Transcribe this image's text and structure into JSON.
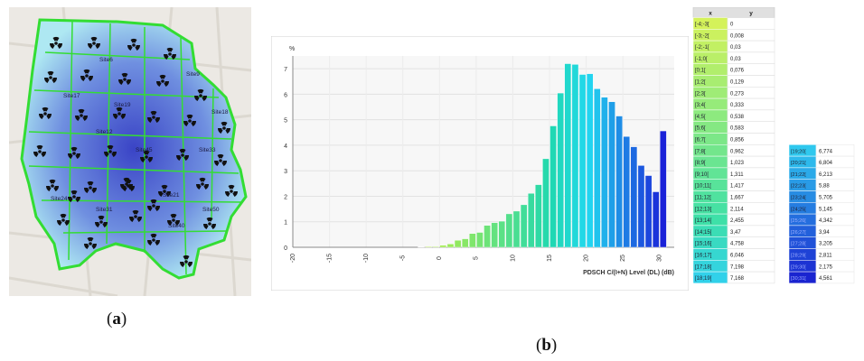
{
  "captions": {
    "a": "a",
    "b": "b"
  },
  "map": {
    "site_labels": [
      "Site6",
      "Site9",
      "Site12",
      "Site18",
      "Site33",
      "Site21",
      "Site17",
      "Site19",
      "Site24",
      "Site31",
      "Site40",
      "Site45",
      "Site50"
    ],
    "colors": {
      "boundary": "#33dd33",
      "coverage_light": "#aee8f2",
      "coverage_dark": "#3a44c6",
      "background": "#ece9e4"
    },
    "icon": "radiation-site-icon"
  },
  "chart_data": {
    "type": "bar",
    "ylabel": "%",
    "xlabel": "PDSCH C/(I+N) Level (DL) (dB)",
    "xlim": [
      -20,
      32
    ],
    "ylim": [
      0,
      7.5
    ],
    "xticks": [
      -20,
      -15,
      -10,
      -5,
      0,
      5,
      10,
      15,
      20,
      25,
      30
    ],
    "yticks": [
      0,
      1,
      2,
      3,
      4,
      5,
      6,
      7
    ],
    "grid": true,
    "bars": [
      {
        "x": [
          -4,
          -3
        ],
        "y": 0
      },
      {
        "x": [
          -3,
          -2
        ],
        "y": 0.008
      },
      {
        "x": [
          -2,
          -1
        ],
        "y": 0.03
      },
      {
        "x": [
          -1,
          0
        ],
        "y": 0.03
      },
      {
        "x": [
          0,
          1
        ],
        "y": 0.076
      },
      {
        "x": [
          1,
          2
        ],
        "y": 0.129
      },
      {
        "x": [
          2,
          3
        ],
        "y": 0.273
      },
      {
        "x": [
          3,
          4
        ],
        "y": 0.333
      },
      {
        "x": [
          4,
          5
        ],
        "y": 0.538
      },
      {
        "x": [
          5,
          6
        ],
        "y": 0.583
      },
      {
        "x": [
          6,
          7
        ],
        "y": 0.856
      },
      {
        "x": [
          7,
          8
        ],
        "y": 0.962
      },
      {
        "x": [
          8,
          9
        ],
        "y": 1.023
      },
      {
        "x": [
          9,
          10
        ],
        "y": 1.311
      },
      {
        "x": [
          10,
          11
        ],
        "y": 1.417
      },
      {
        "x": [
          11,
          12
        ],
        "y": 1.667
      },
      {
        "x": [
          12,
          13
        ],
        "y": 2.114
      },
      {
        "x": [
          13,
          14
        ],
        "y": 2.455
      },
      {
        "x": [
          14,
          15
        ],
        "y": 3.47
      },
      {
        "x": [
          15,
          16
        ],
        "y": 4.758
      },
      {
        "x": [
          16,
          17
        ],
        "y": 6.046
      },
      {
        "x": [
          17,
          18
        ],
        "y": 7.198
      },
      {
        "x": [
          18,
          19
        ],
        "y": 7.168
      },
      {
        "x": [
          19,
          20
        ],
        "y": 6.774
      },
      {
        "x": [
          20,
          21
        ],
        "y": 6.804
      },
      {
        "x": [
          21,
          22
        ],
        "y": 6.213
      },
      {
        "x": [
          22,
          23
        ],
        "y": 5.88
      },
      {
        "x": [
          23,
          24
        ],
        "y": 5.705
      },
      {
        "x": [
          24,
          25
        ],
        "y": 5.145
      },
      {
        "x": [
          25,
          26
        ],
        "y": 4.342
      },
      {
        "x": [
          26,
          27
        ],
        "y": 3.94
      },
      {
        "x": [
          27,
          28
        ],
        "y": 3.205
      },
      {
        "x": [
          28,
          29
        ],
        "y": 2.811
      },
      {
        "x": [
          29,
          30
        ],
        "y": 2.175
      },
      {
        "x": [
          30,
          31
        ],
        "y": 4.561
      }
    ],
    "colors": {
      "low": "#c6f03a",
      "mid": "#20d8b0",
      "high": "#22d8f0",
      "top": "#1a22d8"
    }
  },
  "table": {
    "headers": [
      "x",
      "y"
    ],
    "col1": [
      [
        "[-4;-3[",
        "0"
      ],
      [
        "[-3;-2[",
        "0,008"
      ],
      [
        "[-2;-1[",
        "0,03"
      ],
      [
        "[-1;0[",
        "0,03"
      ],
      [
        "[0;1[",
        "0,076"
      ],
      [
        "[1;2[",
        "0,129"
      ],
      [
        "[2;3[",
        "0,273"
      ],
      [
        "[3;4[",
        "0,333"
      ],
      [
        "[4;5[",
        "0,538"
      ],
      [
        "[5;6[",
        "0,583"
      ],
      [
        "[6;7[",
        "0,856"
      ],
      [
        "[7;8[",
        "0,962"
      ],
      [
        "[8;9[",
        "1,023"
      ],
      [
        "[9;10[",
        "1,311"
      ],
      [
        "[10;11[",
        "1,417"
      ],
      [
        "[11;12[",
        "1,667"
      ],
      [
        "[12;13[",
        "2,114"
      ],
      [
        "[13;14[",
        "2,455"
      ],
      [
        "[14;15[",
        "3,47"
      ],
      [
        "[15;16[",
        "4,758"
      ],
      [
        "[16;17[",
        "6,046"
      ],
      [
        "[17;18[",
        "7,198"
      ],
      [
        "[18;19[",
        "7,168"
      ]
    ],
    "col2": [
      [
        "[19;20[",
        "6,774"
      ],
      [
        "[20;21[",
        "6,804"
      ],
      [
        "[21;22[",
        "6,213"
      ],
      [
        "[22;23[",
        "5,88"
      ],
      [
        "[23;24[",
        "5,705"
      ],
      [
        "[24;25[",
        "5,145"
      ],
      [
        "[25;26[",
        "4,342"
      ],
      [
        "[26;27[",
        "3,94"
      ],
      [
        "[27;28[",
        "3,205"
      ],
      [
        "[28;29[",
        "2,811"
      ],
      [
        "[29;30[",
        "2,175"
      ],
      [
        "[30;31[",
        "4,561"
      ]
    ]
  }
}
